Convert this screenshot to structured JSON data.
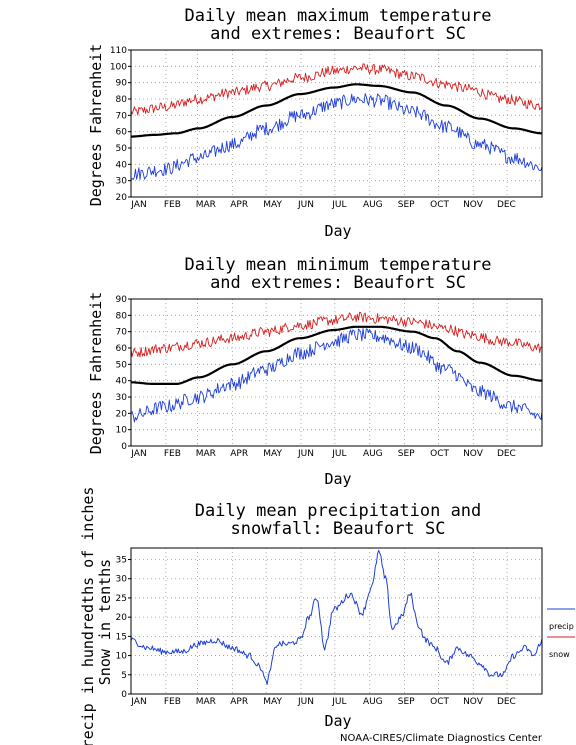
{
  "credit": "NOAA-CIRES/Climate Diagnostics Center",
  "colors": {
    "max": "#d62020",
    "min": "#1f3fd6",
    "mean": "#000000",
    "precip": "#1f3fd6",
    "snow": "#d62020"
  },
  "chart_data": [
    {
      "type": "line",
      "title_lines": [
        "Daily mean maximum temperature",
        "and extremes: Beaufort SC"
      ],
      "xlabel": "Day",
      "ylabel": "Degrees Fahrenheit",
      "ylim": [
        20,
        110
      ],
      "yticks": [
        20,
        30,
        40,
        50,
        60,
        70,
        80,
        90,
        100,
        110
      ],
      "months": [
        "JAN",
        "FEB",
        "MAR",
        "APR",
        "MAY",
        "JUN",
        "JUL",
        "AUG",
        "SEP",
        "OCT",
        "NOV",
        "DEC"
      ],
      "grid": true,
      "series": [
        {
          "key": "max",
          "anchors": [
            [
              0,
              72
            ],
            [
              30,
              75
            ],
            [
              60,
              80
            ],
            [
              90,
              84
            ],
            [
              120,
              88
            ],
            [
              150,
              93
            ],
            [
              180,
              97
            ],
            [
              200,
              99
            ],
            [
              220,
              98
            ],
            [
              250,
              94
            ],
            [
              280,
              89
            ],
            [
              300,
              86
            ],
            [
              330,
              80
            ],
            [
              365,
              76
            ]
          ]
        },
        {
          "key": "mean",
          "anchors": [
            [
              0,
              57
            ],
            [
              20,
              58
            ],
            [
              40,
              59
            ],
            [
              60,
              62
            ],
            [
              90,
              69
            ],
            [
              120,
              76
            ],
            [
              150,
              83
            ],
            [
              180,
              87
            ],
            [
              200,
              89
            ],
            [
              220,
              88
            ],
            [
              250,
              84
            ],
            [
              280,
              76
            ],
            [
              310,
              68
            ],
            [
              340,
              62
            ],
            [
              365,
              59
            ]
          ]
        },
        {
          "key": "min",
          "anchors": [
            [
              0,
              34
            ],
            [
              30,
              37
            ],
            [
              60,
              44
            ],
            [
              90,
              52
            ],
            [
              120,
              62
            ],
            [
              150,
              70
            ],
            [
              180,
              77
            ],
            [
              200,
              80
            ],
            [
              220,
              79
            ],
            [
              250,
              72
            ],
            [
              280,
              63
            ],
            [
              310,
              52
            ],
            [
              340,
              44
            ],
            [
              365,
              38
            ]
          ]
        }
      ]
    },
    {
      "type": "line",
      "title_lines": [
        "Daily mean minimum temperature",
        "and extremes: Beaufort SC"
      ],
      "xlabel": "Day",
      "ylabel": "Degrees Fahrenheit",
      "ylim": [
        0,
        90
      ],
      "yticks": [
        0,
        10,
        20,
        30,
        40,
        50,
        60,
        70,
        80,
        90
      ],
      "months": [
        "JAN",
        "FEB",
        "MAR",
        "APR",
        "MAY",
        "JUN",
        "JUL",
        "AUG",
        "SEP",
        "OCT",
        "NOV",
        "DEC"
      ],
      "grid": true,
      "series": [
        {
          "key": "max",
          "anchors": [
            [
              0,
              57
            ],
            [
              30,
              60
            ],
            [
              60,
              63
            ],
            [
              90,
              66
            ],
            [
              120,
              70
            ],
            [
              150,
              74
            ],
            [
              180,
              77
            ],
            [
              200,
              79
            ],
            [
              220,
              78
            ],
            [
              250,
              76
            ],
            [
              280,
              72
            ],
            [
              300,
              68
            ],
            [
              330,
              64
            ],
            [
              365,
              60
            ]
          ]
        },
        {
          "key": "mean",
          "anchors": [
            [
              0,
              39
            ],
            [
              20,
              38
            ],
            [
              40,
              38
            ],
            [
              60,
              42
            ],
            [
              90,
              50
            ],
            [
              120,
              58
            ],
            [
              150,
              66
            ],
            [
              180,
              71
            ],
            [
              200,
              73
            ],
            [
              220,
              73
            ],
            [
              250,
              70
            ],
            [
              270,
              66
            ],
            [
              290,
              58
            ],
            [
              310,
              51
            ],
            [
              340,
              43
            ],
            [
              365,
              40
            ]
          ]
        },
        {
          "key": "min",
          "anchors": [
            [
              0,
              18
            ],
            [
              30,
              24
            ],
            [
              60,
              30
            ],
            [
              90,
              38
            ],
            [
              120,
              47
            ],
            [
              150,
              57
            ],
            [
              180,
              64
            ],
            [
              200,
              68
            ],
            [
              220,
              67
            ],
            [
              250,
              60
            ],
            [
              280,
              47
            ],
            [
              310,
              33
            ],
            [
              340,
              24
            ],
            [
              365,
              18
            ]
          ]
        }
      ]
    },
    {
      "type": "line",
      "title_lines": [
        "Daily mean precipitation and",
        "snowfall: Beaufort SC"
      ],
      "xlabel": "Day",
      "ylabel_lines": [
        "Precip in hundredths of inches",
        "Snow in tenths"
      ],
      "ylim": [
        0,
        38
      ],
      "yticks": [
        0,
        5,
        10,
        15,
        20,
        25,
        30,
        35
      ],
      "months": [
        "JAN",
        "FEB",
        "MAR",
        "APR",
        "MAY",
        "JUN",
        "JUL",
        "AUG",
        "SEP",
        "OCT",
        "NOV",
        "DEC"
      ],
      "grid": true,
      "legend": [
        {
          "key": "precip",
          "label": "precip"
        },
        {
          "key": "snow",
          "label": "snow"
        }
      ],
      "series": [
        {
          "key": "precip",
          "anchors": [
            [
              0,
              14
            ],
            [
              15,
              12
            ],
            [
              30,
              11
            ],
            [
              45,
              11
            ],
            [
              60,
              13
            ],
            [
              75,
              14
            ],
            [
              90,
              12
            ],
            [
              105,
              10
            ],
            [
              115,
              7
            ],
            [
              120,
              3
            ],
            [
              130,
              13
            ],
            [
              140,
              13
            ],
            [
              150,
              14
            ],
            [
              158,
              20
            ],
            [
              165,
              25
            ],
            [
              172,
              12
            ],
            [
              180,
              22
            ],
            [
              195,
              26
            ],
            [
              205,
              21
            ],
            [
              214,
              28
            ],
            [
              220,
              37
            ],
            [
              226,
              30
            ],
            [
              232,
              17
            ],
            [
              240,
              20
            ],
            [
              248,
              26
            ],
            [
              255,
              18
            ],
            [
              262,
              14
            ],
            [
              270,
              12
            ],
            [
              280,
              8
            ],
            [
              290,
              12
            ],
            [
              300,
              10
            ],
            [
              310,
              8
            ],
            [
              320,
              5
            ],
            [
              330,
              5
            ],
            [
              340,
              10
            ],
            [
              350,
              12
            ],
            [
              358,
              10
            ],
            [
              365,
              14
            ]
          ]
        },
        {
          "key": "snow",
          "anchors": [
            [
              0,
              0
            ],
            [
              365,
              0
            ]
          ]
        }
      ]
    }
  ]
}
